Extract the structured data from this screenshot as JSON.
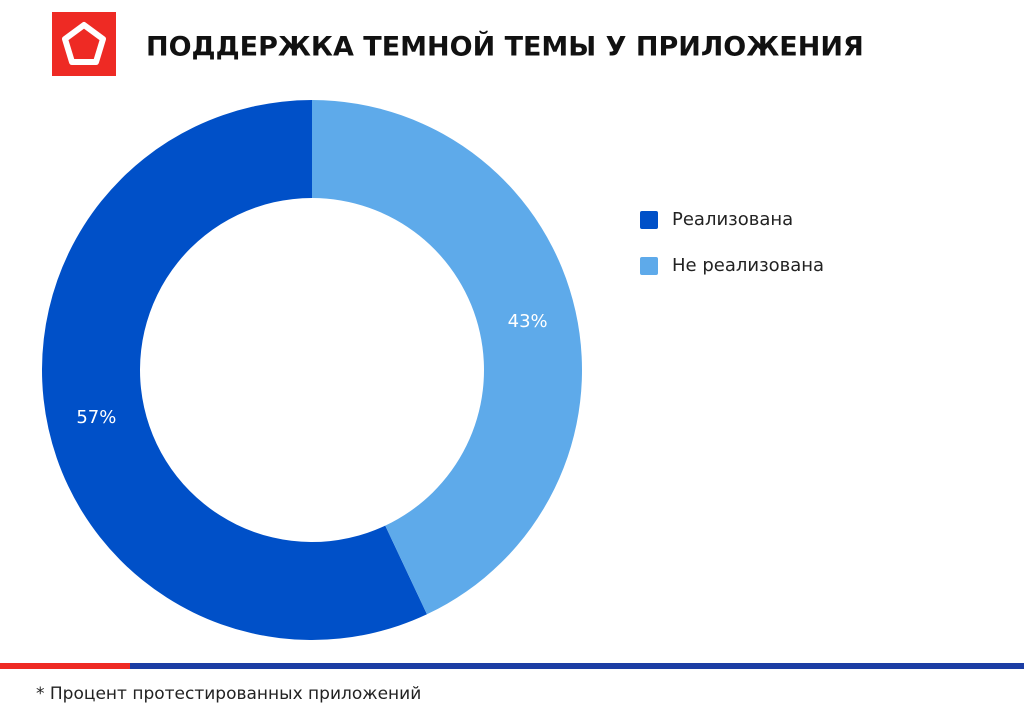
{
  "chart_data": {
    "type": "donut",
    "title": "ПОДДЕРЖКА ТЕМНОЙ ТЕМЫ У ПРИЛОЖЕНИЯ",
    "categories": [
      "Реализована",
      "Не реализована"
    ],
    "values": [
      57,
      43
    ],
    "value_labels": [
      "57%",
      "43%"
    ],
    "colors": [
      "#0050c8",
      "#5eaaea"
    ],
    "legend": "right",
    "footnote": "* Процент протестированных приложений"
  }
}
